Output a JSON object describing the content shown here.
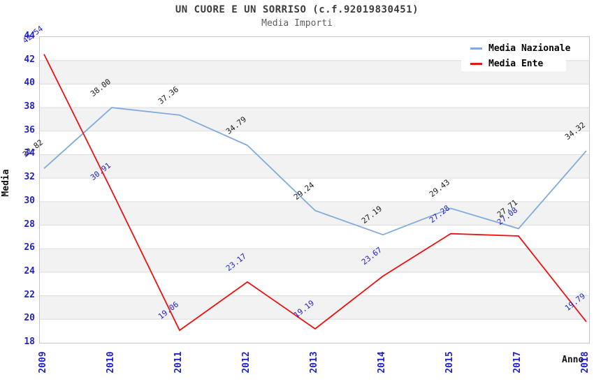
{
  "chart_data": {
    "type": "line",
    "title": "UN CUORE E UN SORRISO (c.f.92019830451)",
    "subtitle": "Media Importi",
    "categories": [
      "2009",
      "2010",
      "2011",
      "2012",
      "2013",
      "2014",
      "2015",
      "2017",
      "2018"
    ],
    "series": [
      {
        "name": "Media Nazionale",
        "color": "#7fabdf",
        "label_color": "#1a1a1a",
        "values": [
          32.82,
          38.0,
          37.36,
          34.79,
          29.24,
          27.19,
          29.43,
          27.71,
          34.32
        ]
      },
      {
        "name": "Media Ente",
        "color": "#ee1111",
        "label_color": "#2323cc",
        "values": [
          42.54,
          30.91,
          19.06,
          23.17,
          19.19,
          23.67,
          27.28,
          27.08,
          19.79
        ]
      }
    ],
    "xlabel": "Anno",
    "ylabel": "Media",
    "ylim": [
      18,
      44
    ],
    "ytick_step": 2,
    "legend_position": "top-right",
    "grid": "horizontal-bands",
    "band_colors": [
      "#ffffff",
      "#f2f2f2"
    ],
    "gridline_color": "#dcdcdc",
    "plot_border_color": "#c6c6c6",
    "axis_text_color": "#2121cc"
  }
}
